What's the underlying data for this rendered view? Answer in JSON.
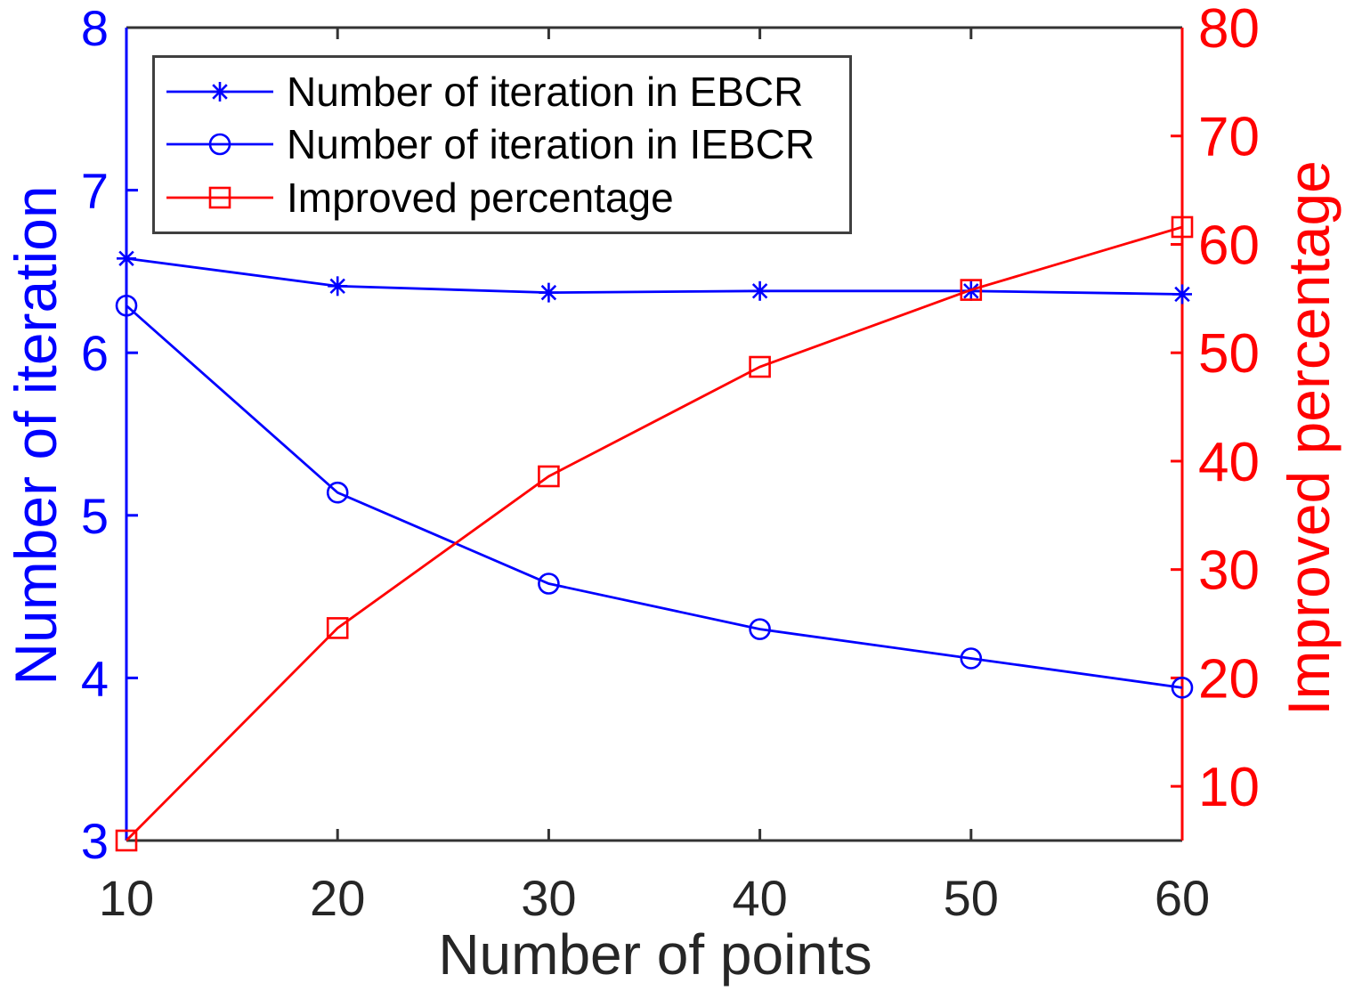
{
  "page": {
    "background": "#ffffff"
  },
  "chart_data": {
    "type": "line",
    "title": "",
    "xlabel": "Number of points",
    "ylabel_left": "Number of iteration",
    "ylabel_right": "Improved percentage",
    "x": [
      10,
      20,
      30,
      40,
      50,
      60
    ],
    "xlim": [
      10,
      60
    ],
    "ylim_left": [
      3,
      8
    ],
    "ylim_right": [
      5,
      80
    ],
    "x_ticks": [
      10,
      20,
      30,
      40,
      50,
      60
    ],
    "y_ticks_left": [
      3,
      4,
      5,
      6,
      7,
      8
    ],
    "y_ticks_right": [
      10,
      20,
      30,
      40,
      50,
      60,
      70,
      80
    ],
    "grid": false,
    "legend_position": "top-left",
    "series": [
      {
        "key": "ebcr",
        "name": "Number of iteration in EBCR",
        "axis": "left",
        "color": "#0000ff",
        "marker": "asterisk",
        "values": [
          6.58,
          6.41,
          6.37,
          6.38,
          6.38,
          6.36
        ]
      },
      {
        "key": "iebcr",
        "name": "Number of iteration in IEBCR",
        "axis": "left",
        "color": "#0000ff",
        "marker": "circle",
        "values": [
          6.29,
          5.14,
          4.58,
          4.3,
          4.12,
          3.94
        ]
      },
      {
        "key": "improved",
        "name": "Improved percentage",
        "axis": "right",
        "color": "#ff0000",
        "marker": "square",
        "values": [
          5.0,
          24.6,
          38.6,
          48.7,
          55.8,
          61.6
        ]
      }
    ],
    "colors": {
      "left_axis": "#0000ff",
      "right_axis": "#ff0000",
      "x_axis": "#333333",
      "x_tick_text": "#262626"
    }
  }
}
